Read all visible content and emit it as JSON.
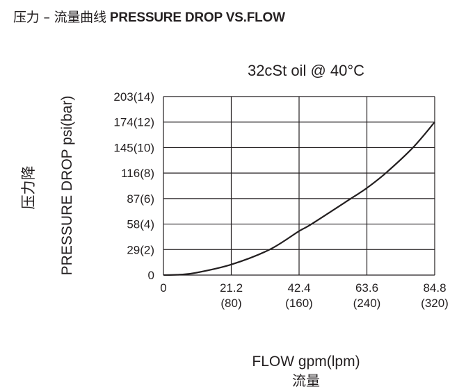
{
  "page_title_cn": "压力 – 流量曲线",
  "page_title_en": "PRESSURE DROP VS.FLOW",
  "chart_data": {
    "type": "line",
    "title": "32cSt  oil @ 40°C",
    "xlabel": "FLOW gpm(lpm)",
    "xlabel_cn": "流量",
    "ylabel": "PRESSURE DROP psi(bar)",
    "ylabel_cn": "压力降",
    "xlim": [
      0,
      84.8
    ],
    "ylim": [
      0,
      203
    ],
    "grid": true,
    "x_ticks": [
      {
        "value": 0,
        "label": "0",
        "sub": ""
      },
      {
        "value": 21.2,
        "label": "21.2",
        "sub": "(80)"
      },
      {
        "value": 42.4,
        "label": "42.4",
        "sub": "(160)"
      },
      {
        "value": 63.6,
        "label": "63.6",
        "sub": "(240)"
      },
      {
        "value": 84.8,
        "label": "84.8",
        "sub": "(320)"
      }
    ],
    "y_ticks": [
      {
        "value": 0,
        "label": "0"
      },
      {
        "value": 29,
        "label": "29(2)"
      },
      {
        "value": 58,
        "label": "58(4)"
      },
      {
        "value": 87,
        "label": "87(6)"
      },
      {
        "value": 116,
        "label": "116(8)"
      },
      {
        "value": 145,
        "label": "145(10)"
      },
      {
        "value": 174,
        "label": "174(12)"
      },
      {
        "value": 203,
        "label": "203(14)"
      }
    ],
    "series": [
      {
        "color": "#231f20",
        "x": [
          0,
          5,
          10,
          21.2,
          33.2,
          42.4,
          46.3,
          58.6,
          63.6,
          69.5,
          78.0,
          84.8
        ],
        "y": [
          0,
          0.5,
          2.5,
          12,
          29,
          50,
          58,
          87,
          99,
          116,
          145,
          174
        ]
      }
    ]
  }
}
